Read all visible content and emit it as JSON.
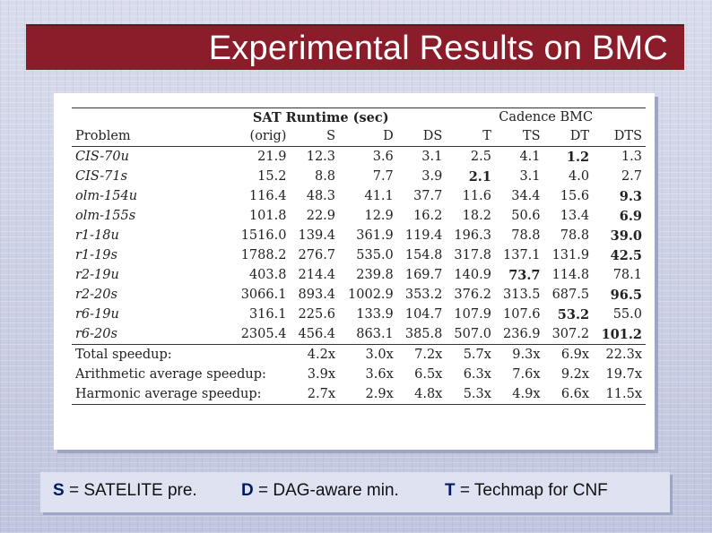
{
  "title": "Experimental Results on BMC",
  "table": {
    "group_headers": {
      "sat": "SAT Runtime (sec)",
      "cadence": "Cadence BMC"
    },
    "columns": [
      "Problem",
      "(orig)",
      "S",
      "D",
      "DS",
      "T",
      "TS",
      "DT",
      "DTS"
    ],
    "rows": [
      {
        "problem": "CIS-70u",
        "values": [
          "21.9",
          "12.3",
          "3.6",
          "3.1",
          "2.5",
          "4.1",
          "1.2",
          "1.3"
        ],
        "bold": [
          6
        ]
      },
      {
        "problem": "CIS-71s",
        "values": [
          "15.2",
          "8.8",
          "7.7",
          "3.9",
          "2.1",
          "3.1",
          "4.0",
          "2.7"
        ],
        "bold": [
          4
        ]
      },
      {
        "problem": "olm-154u",
        "values": [
          "116.4",
          "48.3",
          "41.1",
          "37.7",
          "11.6",
          "34.4",
          "15.6",
          "9.3"
        ],
        "bold": [
          7
        ]
      },
      {
        "problem": "olm-155s",
        "values": [
          "101.8",
          "22.9",
          "12.9",
          "16.2",
          "18.2",
          "50.6",
          "13.4",
          "6.9"
        ],
        "bold": [
          7
        ]
      },
      {
        "problem": "r1-18u",
        "values": [
          "1516.0",
          "139.4",
          "361.9",
          "119.4",
          "196.3",
          "78.8",
          "78.8",
          "39.0"
        ],
        "bold": [
          7
        ]
      },
      {
        "problem": "r1-19s",
        "values": [
          "1788.2",
          "276.7",
          "535.0",
          "154.8",
          "317.8",
          "137.1",
          "131.9",
          "42.5"
        ],
        "bold": [
          7
        ]
      },
      {
        "problem": "r2-19u",
        "values": [
          "403.8",
          "214.4",
          "239.8",
          "169.7",
          "140.9",
          "73.7",
          "114.8",
          "78.1"
        ],
        "bold": [
          5
        ]
      },
      {
        "problem": "r2-20s",
        "values": [
          "3066.1",
          "893.4",
          "1002.9",
          "353.2",
          "376.2",
          "313.5",
          "687.5",
          "96.5"
        ],
        "bold": [
          7
        ]
      },
      {
        "problem": "r6-19u",
        "values": [
          "316.1",
          "225.6",
          "133.9",
          "104.7",
          "107.9",
          "107.6",
          "53.2",
          "55.0"
        ],
        "bold": [
          6
        ]
      },
      {
        "problem": "r6-20s",
        "values": [
          "2305.4",
          "456.4",
          "863.1",
          "385.8",
          "507.0",
          "236.9",
          "307.2",
          "101.2"
        ],
        "bold": [
          7
        ]
      }
    ],
    "summary": [
      {
        "label": "Total speedup:",
        "values": [
          "4.2x",
          "3.0x",
          "7.2x",
          "5.7x",
          "9.3x",
          "6.9x",
          "22.3x"
        ]
      },
      {
        "label": "Arithmetic average speedup:",
        "values": [
          "3.9x",
          "3.6x",
          "6.5x",
          "6.3x",
          "7.6x",
          "9.2x",
          "19.7x"
        ]
      },
      {
        "label": "Harmonic average speedup:",
        "values": [
          "2.7x",
          "2.9x",
          "4.8x",
          "5.3x",
          "4.9x",
          "6.6x",
          "11.5x"
        ]
      }
    ]
  },
  "legend": [
    {
      "key": "S",
      "text": " = SATELITE pre."
    },
    {
      "key": "D",
      "text": " = DAG-aware min."
    },
    {
      "key": "T",
      "text": " = Techmap for CNF"
    }
  ]
}
